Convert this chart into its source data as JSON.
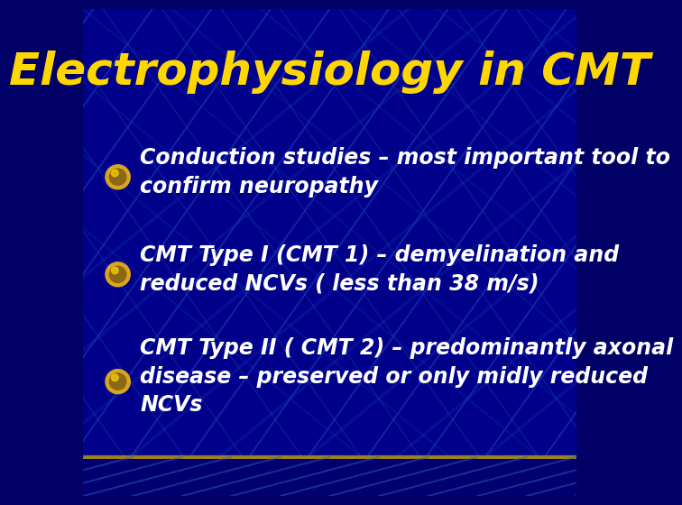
{
  "title": "Electrophysiology in CMT",
  "title_color": "#FFD700",
  "title_fontsize": 36,
  "bg_color": "#00008B",
  "bg_color_dark": "#000066",
  "bullet_color": "#DAA520",
  "text_color": "#FFFFFF",
  "bullets": [
    "Conduction studies – most important tool to\nconfirm neuropathy",
    "CMT Type I (CMT 1) – demyelination and\nreduced NCVs ( less than 38 m/s)",
    "CMT Type II ( CMT 2) – predominantly axonal\ndisease – preserved or only midly reduced\nNCVs"
  ],
  "bullet_fontsize": 17,
  "line_color_gold": "#B8860B",
  "line_color_green": "#6B8E23",
  "footer_bg": "#000070"
}
